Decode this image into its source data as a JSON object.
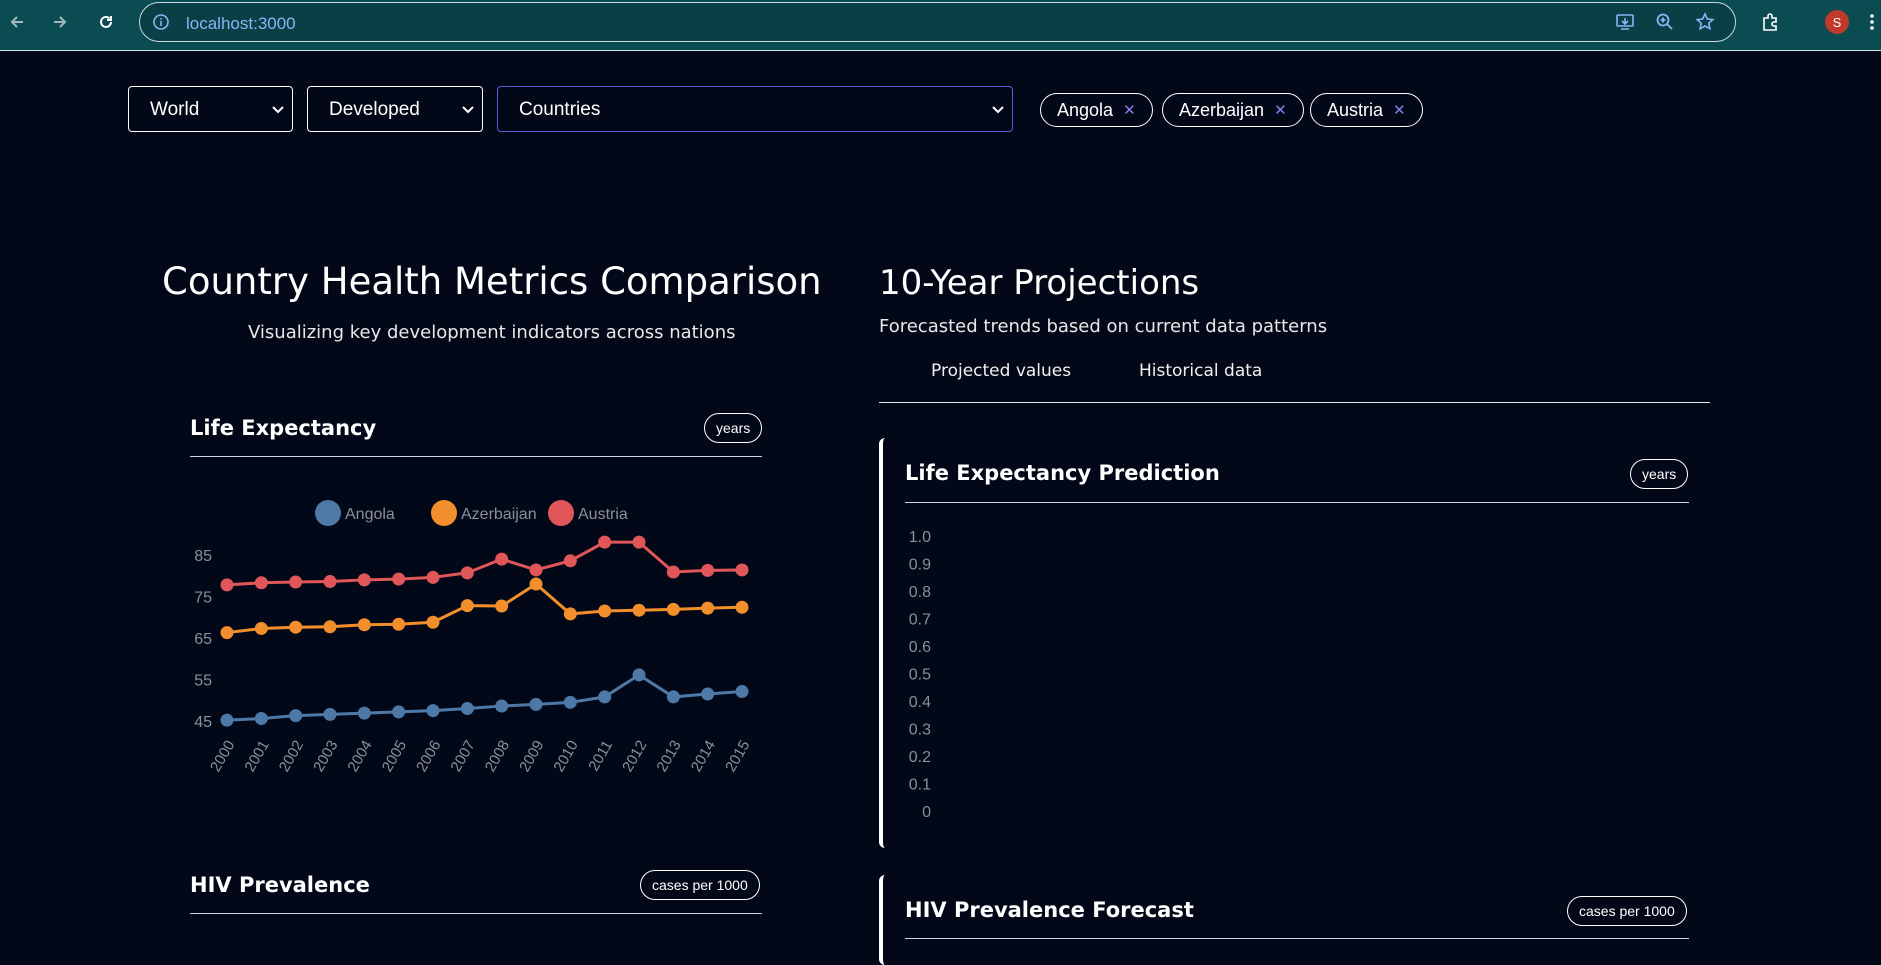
{
  "browser": {
    "url": "localhost:3000",
    "avatar_letter": "S"
  },
  "filters": {
    "region": "World",
    "development": "Developed",
    "countries_placeholder": "Countries",
    "selected": [
      "Angola",
      "Azerbaijan",
      "Austria"
    ]
  },
  "left": {
    "title": "Country Health Metrics Comparison",
    "subtitle": "Visualizing key development indicators across nations",
    "life_section": {
      "title": "Life Expectancy",
      "unit": "years"
    },
    "hiv_section": {
      "title": "HIV Prevalence",
      "unit": "cases per 1000"
    }
  },
  "right": {
    "title": "10-Year Projections",
    "subtitle": "Forecasted trends based on current data patterns",
    "tabs": [
      "Projected values",
      "Historical data"
    ],
    "life_card": {
      "title": "Life Expectancy Prediction",
      "unit": "years"
    },
    "hiv_card": {
      "title": "HIV Prevalence Forecast",
      "unit": "cases per 1000"
    }
  },
  "colors": {
    "angola": "#4e79a7",
    "azerbaijan": "#f28e2b",
    "austria": "#e15759",
    "axis_text": "#8a8f98"
  },
  "chart_data": [
    {
      "type": "line",
      "x": [
        "2000",
        "2001",
        "2002",
        "2003",
        "2004",
        "2005",
        "2006",
        "2007",
        "2008",
        "2009",
        "2010",
        "2011",
        "2012",
        "2013",
        "2014",
        "2015"
      ],
      "yticks": [
        45,
        55,
        65,
        75,
        85
      ],
      "ylim": [
        45,
        85
      ],
      "legend_position": "top",
      "series": [
        {
          "name": "Angola",
          "values": [
            45.2,
            45.6,
            46.3,
            46.6,
            46.9,
            47.2,
            47.5,
            48.0,
            48.6,
            49.0,
            49.5,
            50.8,
            56.1,
            50.8,
            51.5,
            52.1
          ]
        },
        {
          "name": "Azerbaijan",
          "values": [
            66.3,
            67.3,
            67.6,
            67.7,
            68.2,
            68.3,
            68.8,
            72.8,
            72.7,
            78.0,
            70.8,
            71.5,
            71.7,
            71.9,
            72.2,
            72.4
          ]
        },
        {
          "name": "Austria",
          "values": [
            77.8,
            78.3,
            78.5,
            78.6,
            79.0,
            79.2,
            79.6,
            80.7,
            84.0,
            81.4,
            83.6,
            88.1,
            88.1,
            80.9,
            81.3,
            81.4
          ]
        }
      ]
    },
    {
      "type": "line",
      "yticks": [
        "1.0",
        "0.9",
        "0.8",
        "0.7",
        "0.6",
        "0.5",
        "0.4",
        "0.3",
        "0.2",
        "0.1",
        "0"
      ],
      "ylim": [
        0,
        1
      ],
      "series": []
    }
  ]
}
